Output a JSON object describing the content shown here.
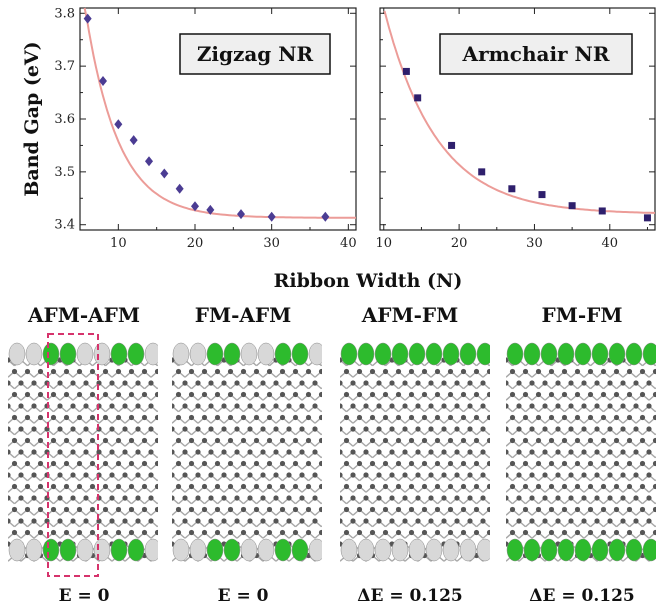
{
  "chart_data": [
    {
      "type": "scatter",
      "title": "",
      "label_box": "Zigzag NR",
      "ylabel": "Band Gap (eV)",
      "xlabel": "Ribbon Width (N)",
      "xlim": [
        5,
        41
      ],
      "ylim": [
        3.39,
        3.81
      ],
      "xticks": [
        10,
        20,
        30,
        40
      ],
      "yticks": [
        3.4,
        3.5,
        3.6,
        3.7,
        3.8
      ],
      "ytick_labels": [
        "3.4",
        "3.5",
        "3.6",
        "3.7",
        "3.8"
      ],
      "marker": "diamond",
      "marker_color": "#4b3c93",
      "fit_color": "#ec9c98",
      "series": [
        {
          "x": [
            6,
            8,
            10,
            12,
            14,
            16,
            18,
            20,
            22,
            26,
            30,
            37
          ],
          "y": [
            3.79,
            3.672,
            3.59,
            3.56,
            3.52,
            3.497,
            3.468,
            3.435,
            3.428,
            3.42,
            3.415,
            3.415
          ]
        }
      ],
      "fit": {
        "form": "a + b*exp(-(x-x0)/t)",
        "a": 3.413,
        "b": 0.367,
        "x0": 6,
        "t": 4.3
      }
    },
    {
      "type": "scatter",
      "title": "",
      "label_box": "Armchair NR",
      "xlim": [
        9.5,
        46
      ],
      "ylim": [
        3.39,
        3.81
      ],
      "xticks": [
        10,
        20,
        30,
        40
      ],
      "marker": "square",
      "marker_color": "#2e1f6c",
      "fit_color": "#ec9c98",
      "series": [
        {
          "x": [
            13,
            14.5,
            19,
            23,
            27,
            31,
            35,
            39,
            45
          ],
          "y": [
            3.69,
            3.64,
            3.55,
            3.5,
            3.468,
            3.457,
            3.436,
            3.426,
            3.413
          ]
        }
      ],
      "fit": {
        "form": "a + b*exp(-(x-x0)/t)",
        "a": 3.42,
        "b": 0.39,
        "x0": 10,
        "t": 7.0
      }
    }
  ],
  "configurations": [
    {
      "label": "AFM-AFM",
      "energy": "E = 0",
      "top": "mixed",
      "bottom": "mixed",
      "highlight": true
    },
    {
      "label": "FM-AFM",
      "energy": "E = 0",
      "top": "mixed",
      "bottom": "mixed",
      "highlight": false
    },
    {
      "label": "AFM-FM",
      "energy": "ΔE = 0.125",
      "top": "green",
      "bottom": "white",
      "highlight": false
    },
    {
      "label": "FM-FM",
      "energy": "ΔE = 0.125",
      "top": "green",
      "bottom": "green",
      "highlight": false
    }
  ],
  "colors": {
    "spin_up": "#2dbb2d",
    "spin_down": "#d8d8d8",
    "atom": "#555555",
    "highlight_box": "#d6336c"
  }
}
